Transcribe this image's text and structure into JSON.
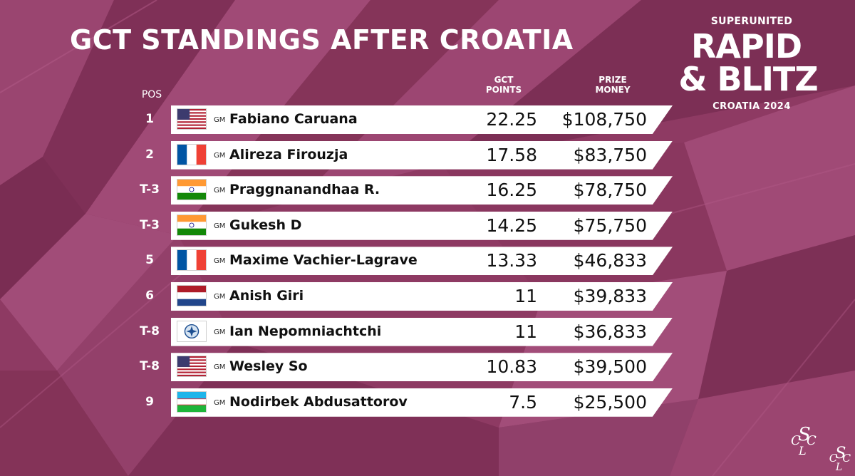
{
  "title": "GCT STANDINGS AFTER CROATIA",
  "brand": {
    "top": "SUPERUNITED",
    "line1": "RAPID",
    "line2": "& BLITZ",
    "sub": "CROATIA 2024"
  },
  "headers": {
    "pos": "POS",
    "points_line1": "GCT",
    "points_line2": "POINTS",
    "prize_line1": "PRIZE",
    "prize_line2": "MONEY"
  },
  "rows": [
    {
      "pos": "1",
      "title": "GM",
      "name": "Fabiano Caruana",
      "flag": "usa-flag-icon",
      "points": "22.25",
      "prize": "$108,750"
    },
    {
      "pos": "2",
      "title": "GM",
      "name": "Alireza Firouzja",
      "flag": "france-flag-icon",
      "points": "17.58",
      "prize": "$83,750"
    },
    {
      "pos": "T-3",
      "title": "GM",
      "name": "Praggnanandhaa R.",
      "flag": "india-flag-icon",
      "points": "16.25",
      "prize": "$78,750"
    },
    {
      "pos": "T-3",
      "title": "GM",
      "name": "Gukesh D",
      "flag": "india-flag-icon",
      "points": "14.25",
      "prize": "$75,750"
    },
    {
      "pos": "5",
      "title": "GM",
      "name": "Maxime Vachier-Lagrave",
      "flag": "france-flag-icon",
      "points": "13.33",
      "prize": "$46,833"
    },
    {
      "pos": "6",
      "title": "GM",
      "name": "Anish Giri",
      "flag": "netherlands-flag-icon",
      "points": "11",
      "prize": "$39,833"
    },
    {
      "pos": "T-8",
      "title": "GM",
      "name": "Ian Nepomniachtchi",
      "flag": "fide-flag-icon",
      "points": "11",
      "prize": "$36,833"
    },
    {
      "pos": "T-8",
      "title": "GM",
      "name": "Wesley So",
      "flag": "usa-flag-icon",
      "points": "10.83",
      "prize": "$39,500"
    },
    {
      "pos": "9",
      "title": "GM",
      "name": "Nodirbek Abdusattorov",
      "flag": "uzbekistan-flag-icon",
      "points": "7.5",
      "prize": "$25,500"
    }
  ],
  "colors": {
    "background": "#8e3a63",
    "row_background": "#ffffff",
    "text_light": "#ffffff",
    "text_dark": "#111111"
  }
}
